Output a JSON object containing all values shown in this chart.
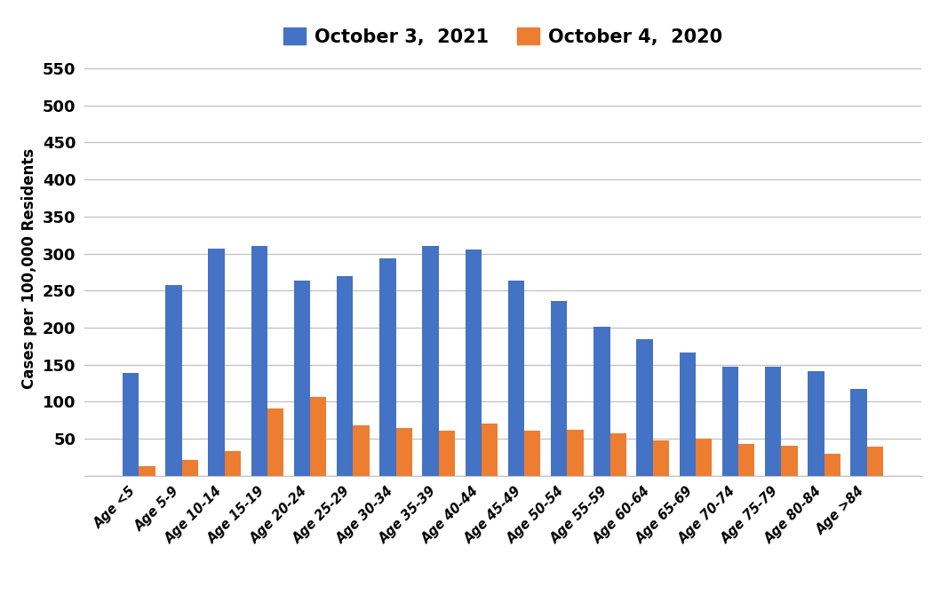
{
  "categories": [
    "Age <5",
    "Age 5-9",
    "Age 10-14",
    "Age 15-19",
    "Age 20-24",
    "Age 25-29",
    "Age 30-34",
    "Age 35-39",
    "Age 40-44",
    "Age 45-49",
    "Age 50-54",
    "Age 55-59",
    "Age 60-64",
    "Age 65-69",
    "Age 70-74",
    "Age 75-79",
    "Age 80-84",
    "Age >84"
  ],
  "values_2021": [
    139,
    258,
    307,
    310,
    264,
    269,
    293,
    310,
    305,
    264,
    236,
    201,
    184,
    166,
    147,
    147,
    141,
    117
  ],
  "values_2020": [
    13,
    22,
    33,
    91,
    106,
    68,
    65,
    61,
    70,
    61,
    62,
    57,
    48,
    50,
    43,
    40,
    30,
    39
  ],
  "color_2021": "#4472C4",
  "color_2020": "#ED7D31",
  "legend_2021": "October 3,  2021",
  "legend_2020": "October 4,  2020",
  "ylabel": "Cases per 100,000 Residents",
  "ylim": [
    0,
    560
  ],
  "yticks": [
    0,
    50,
    100,
    150,
    200,
    250,
    300,
    350,
    400,
    450,
    500,
    550
  ],
  "yticklabels": [
    "",
    "50",
    "100",
    "150",
    "200",
    "250",
    "300",
    "350",
    "400",
    "450",
    "500",
    "550"
  ],
  "background_color": "#ffffff",
  "grid_color": "#c0c0c0",
  "bar_width": 0.38
}
